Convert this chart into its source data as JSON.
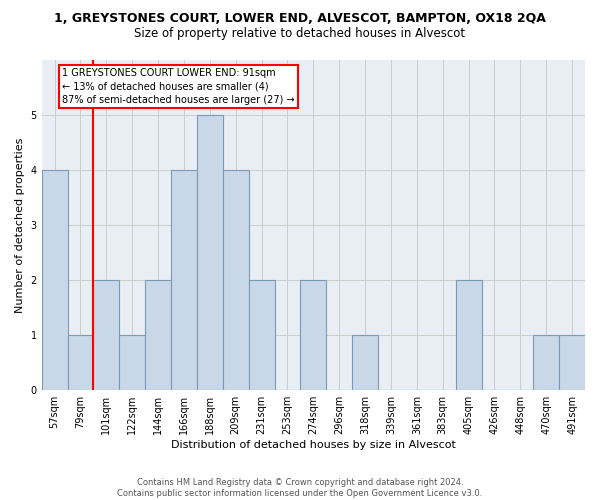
{
  "title1": "1, GREYSTONES COURT, LOWER END, ALVESCOT, BAMPTON, OX18 2QA",
  "title2": "Size of property relative to detached houses in Alvescot",
  "xlabel": "Distribution of detached houses by size in Alvescot",
  "ylabel": "Number of detached properties",
  "footnote": "Contains HM Land Registry data © Crown copyright and database right 2024.\nContains public sector information licensed under the Open Government Licence v3.0.",
  "categories": [
    "57sqm",
    "79sqm",
    "101sqm",
    "122sqm",
    "144sqm",
    "166sqm",
    "188sqm",
    "209sqm",
    "231sqm",
    "253sqm",
    "274sqm",
    "296sqm",
    "318sqm",
    "339sqm",
    "361sqm",
    "383sqm",
    "405sqm",
    "426sqm",
    "448sqm",
    "470sqm",
    "491sqm"
  ],
  "values": [
    4,
    1,
    2,
    1,
    2,
    4,
    5,
    4,
    2,
    0,
    2,
    0,
    1,
    0,
    0,
    0,
    2,
    0,
    0,
    1,
    1
  ],
  "bar_color": "#c8d8e8",
  "bar_edge_color": "#7a9ab5",
  "red_line_x": 1.5,
  "annotation_text": "1 GREYSTONES COURT LOWER END: 91sqm\n← 13% of detached houses are smaller (4)\n87% of semi-detached houses are larger (27) →",
  "annotation_box_color": "white",
  "annotation_box_edge": "red",
  "ylim": [
    0,
    6
  ],
  "yticks": [
    0,
    1,
    2,
    3,
    4,
    5,
    6
  ],
  "grid_color": "#cccccc",
  "background_color": "#e8eef4",
  "title1_fontsize": 9,
  "title2_fontsize": 8.5,
  "xlabel_fontsize": 8,
  "ylabel_fontsize": 8,
  "tick_fontsize": 7,
  "annot_fontsize": 7,
  "footnote_fontsize": 6
}
